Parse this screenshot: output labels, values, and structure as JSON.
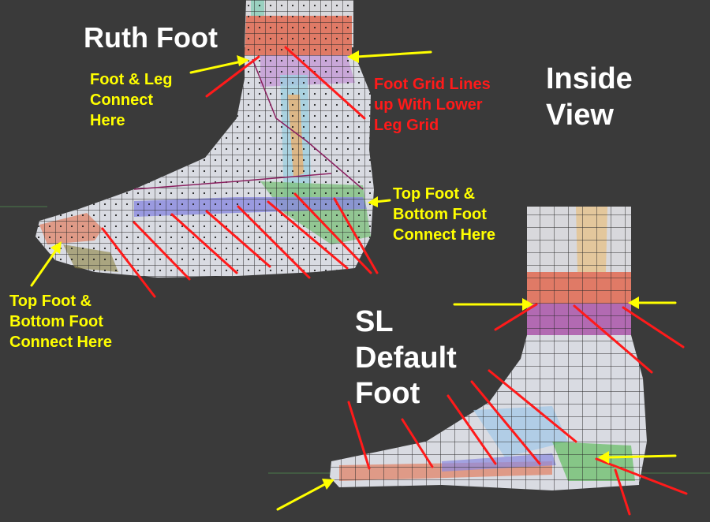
{
  "labels": {
    "ruth_title": "Ruth Foot",
    "foot_leg_connect": "Foot & Leg\nConnect\nHere",
    "grid_lines": "Foot Grid Lines\nup With Lower\nLeg Grid",
    "inside_view": "Inside\nView",
    "top_bottom_right": "Top Foot &\nBottom Foot\nConnect Here",
    "top_bottom_left": "Top Foot &\nBottom Foot\nConnect Here",
    "sl_title": "SL\nDefault\nFoot"
  },
  "colors": {
    "background": "#3a3a3a",
    "annotation_yellow": "#ffff00",
    "annotation_red": "#ff1a1a",
    "heading_white": "#ffffff"
  }
}
